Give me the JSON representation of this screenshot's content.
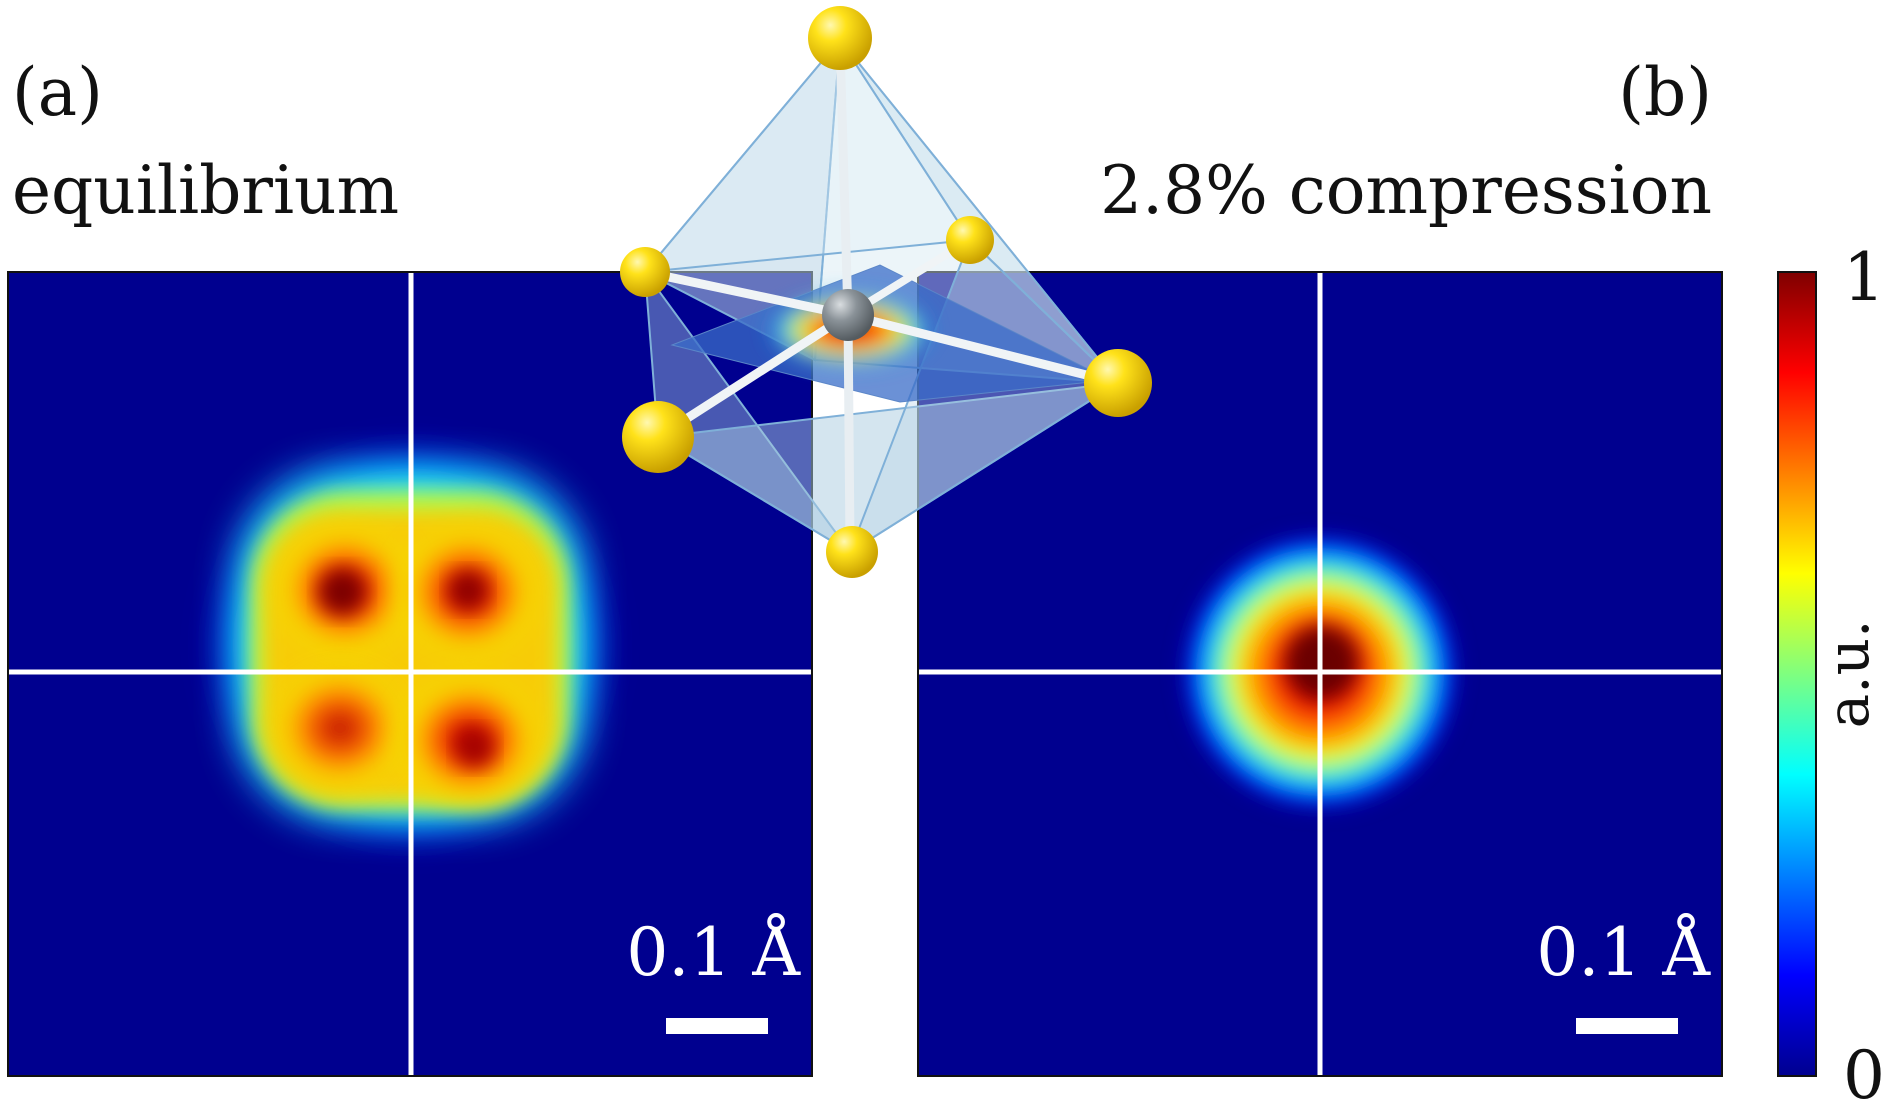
{
  "panels": [
    {
      "label": "(a)",
      "title": "equilibrium",
      "scale_bar_text": "0.1 Å"
    },
    {
      "label": "(b)",
      "title": "2.8% compression",
      "scale_bar_text": "0.1 Å"
    }
  ],
  "colorbar": {
    "max_label": "1",
    "min_label": "0",
    "axis_label": "a.u.",
    "colormap": "jet"
  },
  "colors": {
    "background_map": "#00008f",
    "crosshair": "#ffffff",
    "atom_ligand": "#f4d000",
    "atom_center": "#8a9298",
    "polyhedron_face": "#a9cbe0"
  }
}
